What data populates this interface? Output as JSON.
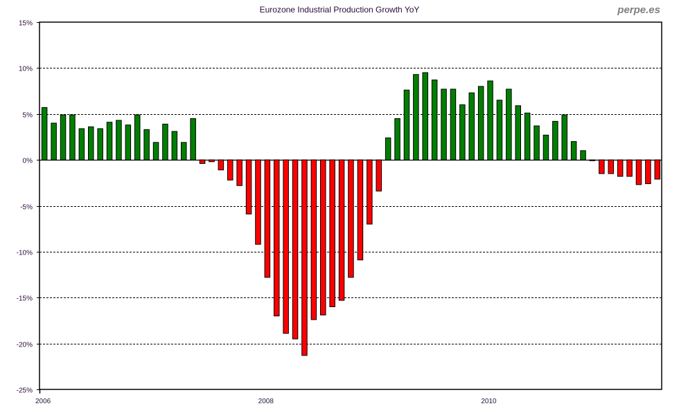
{
  "chart_data": {
    "type": "bar",
    "title": "Eurozone Industrial Production Growth YoY",
    "watermark": "perpe.es",
    "xlabel": "",
    "ylabel": "",
    "ylim": [
      -25,
      15
    ],
    "yticks": [
      15,
      10,
      5,
      0,
      -5,
      -10,
      -15,
      -20,
      -25
    ],
    "ytick_labels": [
      "15%",
      "10%",
      "5%",
      "0%",
      "-5%",
      "-10%",
      "-15%",
      "-20%",
      "-25%"
    ],
    "xtick_labels": [
      {
        "label": "2006",
        "index": 0
      },
      {
        "label": "2008",
        "index": 24
      },
      {
        "label": "2010",
        "index": 48
      }
    ],
    "grid": "horizontal-dashed",
    "legend": "none",
    "colors": {
      "positive": "#008000",
      "negative": "#ff0000"
    },
    "period": "monthly, Jan 2006 - Jul 2011",
    "values": [
      5.7,
      4.0,
      4.9,
      4.9,
      3.4,
      3.6,
      3.4,
      4.1,
      4.3,
      3.8,
      4.9,
      3.3,
      1.9,
      3.9,
      3.1,
      1.9,
      4.5,
      -0.4,
      -0.2,
      -1.1,
      -2.2,
      -2.8,
      -5.9,
      -9.2,
      -12.8,
      -17.0,
      -18.9,
      -19.5,
      -21.3,
      -17.4,
      -16.9,
      -16.0,
      -15.3,
      -12.8,
      -10.9,
      -7.0,
      -3.4,
      2.4,
      4.5,
      7.6,
      9.3,
      9.5,
      8.7,
      7.7,
      7.7,
      6.0,
      7.3,
      8.0,
      8.6,
      6.5,
      7.7,
      5.9,
      5.1,
      3.7,
      2.7,
      4.2,
      4.9,
      2.0,
      1.0,
      -0.1,
      -1.5,
      -1.5,
      -1.8,
      -1.8,
      -2.7,
      -2.6,
      -2.1
    ]
  }
}
